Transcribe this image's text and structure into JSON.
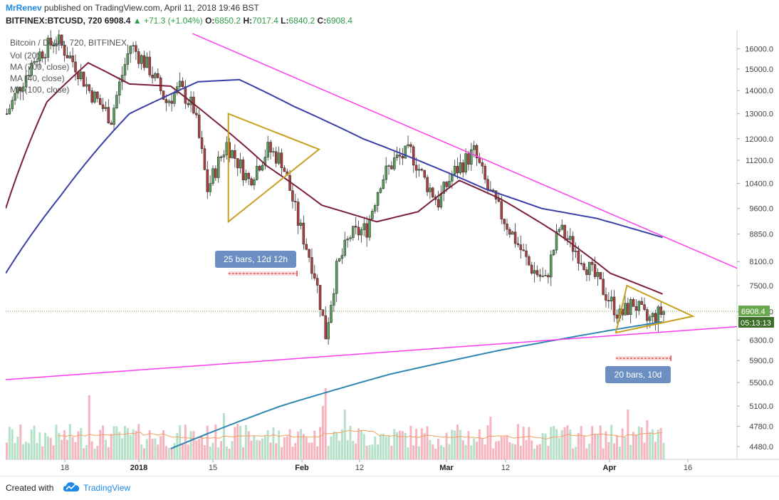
{
  "header": {
    "author": "MrRenev",
    "published_text": "published on TradingView.com, April 11, 2018 19:46 BST",
    "symbol": "BITFINEX:BTCUSD, 720",
    "last": "6908.4",
    "change": "+71.3 (+1.04%)",
    "o_label": "O:",
    "o_value": "6850.2",
    "h_label": "H:",
    "h_value": "7017.4",
    "l_label": "L:",
    "l_value": "6840.2",
    "c_label": "C:",
    "c_value": "6908.4"
  },
  "legend": {
    "title": "Bitcoin / Dollar, 720, BITFINEX",
    "items": [
      "Vol (20)",
      "MA (700, close)",
      "MA (40, close)",
      "MA (100, close)"
    ]
  },
  "annotations": {
    "range1": "25 bars, 12d 12h",
    "range2": "20 bars, 10d",
    "price_tag": "6908.4",
    "countdown": "05:13:13"
  },
  "footer": {
    "created_with": "Created with",
    "brand": "TradingView"
  },
  "colors": {
    "up": "#3a8a3a",
    "down": "#8a2a2a",
    "ma40": "#7b1f3a",
    "ma100": "#3a3fa8",
    "ma700": "#2f86b0",
    "trendline": "#ff3cf0",
    "triangle": "#c8a020",
    "vol_up": "#a8dcc0",
    "vol_down": "#f4a7b4",
    "vol_ma": "#f0a060",
    "badge": "#6b8fc0",
    "price_tag": "#6aa84f"
  },
  "chart_data": {
    "type": "candlestick",
    "title": "Bitcoin / Dollar, 720, BITFINEX",
    "x_ticks": [
      "18",
      "2018",
      "15",
      "Feb",
      "12",
      "Mar",
      "12",
      "Apr",
      "16"
    ],
    "y_ticks": [
      16000,
      15000,
      14000,
      13000,
      12000,
      11200,
      10400,
      9600,
      8850,
      8100,
      7500,
      6900,
      6300,
      5900,
      5500,
      5100,
      4780,
      4480
    ],
    "y_scale": "log",
    "ylim": [
      4300,
      17000
    ],
    "price_path": [
      [
        0,
        13000
      ],
      [
        10,
        15500
      ],
      [
        18,
        16500
      ],
      [
        25,
        15200
      ],
      [
        30,
        14000
      ],
      [
        38,
        12800
      ],
      [
        45,
        16200
      ],
      [
        52,
        15000
      ],
      [
        58,
        13500
      ],
      [
        63,
        14100
      ],
      [
        68,
        13200
      ],
      [
        73,
        10200
      ],
      [
        80,
        11800
      ],
      [
        88,
        10500
      ],
      [
        95,
        11600
      ],
      [
        100,
        11200
      ],
      [
        106,
        9200
      ],
      [
        112,
        7800
      ],
      [
        116,
        6400
      ],
      [
        120,
        7900
      ],
      [
        125,
        8800
      ],
      [
        131,
        9000
      ],
      [
        136,
        10500
      ],
      [
        141,
        11200
      ],
      [
        147,
        11500
      ],
      [
        152,
        10500
      ],
      [
        157,
        9800
      ],
      [
        162,
        10700
      ],
      [
        170,
        11500
      ],
      [
        175,
        10200
      ],
      [
        180,
        9400
      ],
      [
        185,
        8700
      ],
      [
        190,
        8000
      ],
      [
        196,
        7600
      ],
      [
        201,
        9000
      ],
      [
        206,
        8500
      ],
      [
        212,
        7900
      ],
      [
        218,
        7300
      ],
      [
        223,
        6800
      ],
      [
        228,
        7100
      ],
      [
        233,
        6700
      ],
      [
        239,
        6909
      ]
    ],
    "moving_averages": [
      {
        "name": "MA (40, close)",
        "values": [
          [
            0,
            9600
          ],
          [
            15,
            13500
          ],
          [
            30,
            15300
          ],
          [
            45,
            14300
          ],
          [
            60,
            14200
          ],
          [
            75,
            12800
          ],
          [
            95,
            11000
          ],
          [
            115,
            9700
          ],
          [
            135,
            9200
          ],
          [
            150,
            9500
          ],
          [
            165,
            10500
          ],
          [
            180,
            9900
          ],
          [
            200,
            8900
          ],
          [
            220,
            7800
          ],
          [
            239,
            7300
          ]
        ]
      },
      {
        "name": "MA (100, close)",
        "values": [
          [
            0,
            7800
          ],
          [
            20,
            10000
          ],
          [
            45,
            13000
          ],
          [
            70,
            14400
          ],
          [
            85,
            14500
          ],
          [
            105,
            13300
          ],
          [
            130,
            12000
          ],
          [
            155,
            11000
          ],
          [
            175,
            10200
          ],
          [
            195,
            9600
          ],
          [
            215,
            9300
          ],
          [
            239,
            8750
          ]
        ]
      },
      {
        "name": "MA (700, close)",
        "values": [
          [
            60,
            4450
          ],
          [
            100,
            5100
          ],
          [
            140,
            5650
          ],
          [
            180,
            6100
          ],
          [
            220,
            6500
          ],
          [
            239,
            6680
          ]
        ]
      }
    ],
    "trendlines": [
      {
        "from": [
          0,
          5550
        ],
        "to": [
          267,
          6580
        ]
      },
      {
        "from": [
          68,
          16800
        ],
        "to": [
          267,
          7900
        ]
      }
    ],
    "triangles": [
      {
        "points": [
          [
            81,
            13000
          ],
          [
            114,
            11600
          ],
          [
            81,
            9200
          ]
        ]
      },
      {
        "points": [
          [
            226,
            7500
          ],
          [
            250,
            6800
          ],
          [
            222,
            6450
          ]
        ]
      }
    ],
    "measure_ranges": [
      {
        "label": "25 bars, 12d 12h",
        "from": 81,
        "to": 106
      },
      {
        "label": "20 bars, 10d",
        "from": 222,
        "to": 242
      }
    ],
    "last_price": 6908.4
  }
}
